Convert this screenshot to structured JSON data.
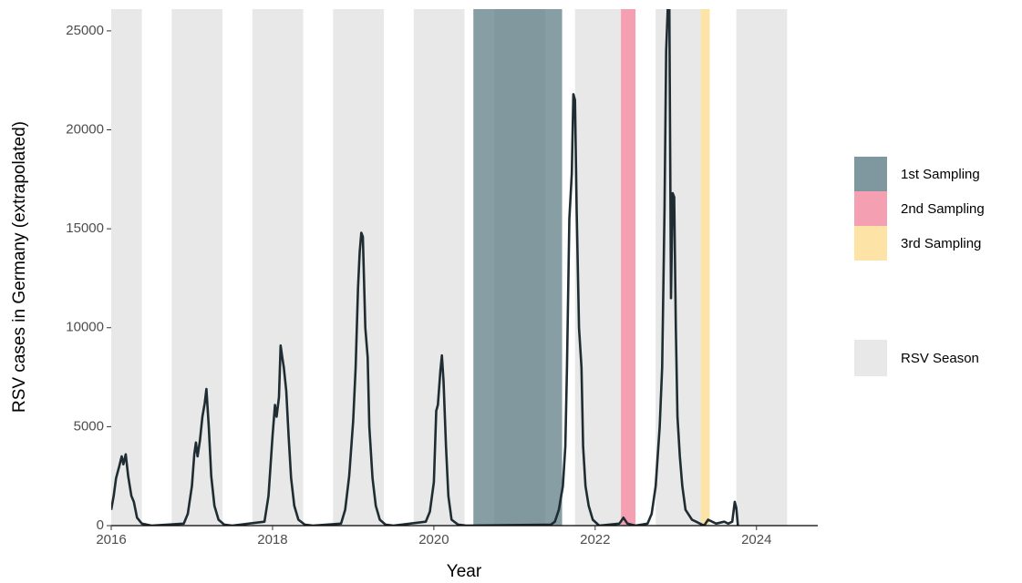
{
  "chart_data": {
    "type": "line",
    "x_label": "Year",
    "y_label": "RSV cases in Germany (extrapolated)",
    "xlim": [
      2016,
      2024.76
    ],
    "ylim": [
      0,
      26100
    ],
    "xticks": [
      2016,
      2018,
      2020,
      2022,
      2024
    ],
    "yticks": [
      0,
      5000,
      10000,
      15000,
      20000,
      25000
    ],
    "color": "#1f2d33",
    "x": [
      2016.0,
      2016.03,
      2016.06,
      2016.1,
      2016.13,
      2016.15,
      2016.18,
      2016.21,
      2016.25,
      2016.28,
      2016.32,
      2016.38,
      2016.5,
      2016.9,
      2016.95,
      2017.0,
      2017.03,
      2017.05,
      2017.07,
      2017.1,
      2017.13,
      2017.16,
      2017.18,
      2017.21,
      2017.24,
      2017.28,
      2017.33,
      2017.4,
      2017.5,
      2017.9,
      2017.95,
      2018.0,
      2018.03,
      2018.05,
      2018.08,
      2018.1,
      2018.12,
      2018.14,
      2018.17,
      2018.2,
      2018.23,
      2018.27,
      2018.32,
      2018.4,
      2018.5,
      2018.85,
      2018.9,
      2018.95,
      2019.0,
      2019.03,
      2019.06,
      2019.08,
      2019.1,
      2019.12,
      2019.15,
      2019.18,
      2019.2,
      2019.24,
      2019.28,
      2019.33,
      2019.4,
      2019.5,
      2019.9,
      2019.95,
      2020.0,
      2020.03,
      2020.05,
      2020.08,
      2020.1,
      2020.12,
      2020.15,
      2020.18,
      2020.22,
      2020.3,
      2020.4,
      2021.45,
      2021.5,
      2021.55,
      2021.6,
      2021.63,
      2021.65,
      2021.68,
      2021.71,
      2021.73,
      2021.75,
      2021.77,
      2021.8,
      2021.83,
      2021.85,
      2021.88,
      2021.92,
      2021.97,
      2022.05,
      2022.3,
      2022.35,
      2022.4,
      2022.5,
      2022.65,
      2022.7,
      2022.75,
      2022.8,
      2022.83,
      2022.86,
      2022.88,
      2022.9,
      2022.92,
      2022.94,
      2022.96,
      2022.98,
      2023.0,
      2023.02,
      2023.05,
      2023.08,
      2023.12,
      2023.2,
      2023.3,
      2023.35,
      2023.4,
      2023.5,
      2023.6,
      2023.65,
      2023.7,
      2023.73,
      2023.75,
      2023.77
    ],
    "values": [
      800,
      1500,
      2400,
      3000,
      3500,
      3100,
      3600,
      2500,
      1500,
      1200,
      400,
      100,
      0,
      100,
      600,
      2000,
      3600,
      4200,
      3500,
      4300,
      5500,
      6200,
      6900,
      5000,
      2500,
      1000,
      300,
      50,
      0,
      200,
      1500,
      4500,
      6100,
      5500,
      6500,
      9100,
      8500,
      8000,
      6800,
      4500,
      2400,
      1000,
      300,
      50,
      0,
      100,
      800,
      2500,
      5300,
      8000,
      12000,
      13800,
      14800,
      14600,
      10000,
      8500,
      5000,
      2400,
      1000,
      300,
      50,
      0,
      200,
      700,
      2200,
      5800,
      6100,
      7800,
      8600,
      7300,
      4000,
      1500,
      300,
      50,
      0,
      50,
      200,
      800,
      2000,
      4000,
      8000,
      15500,
      17800,
      21800,
      21500,
      16000,
      10000,
      8000,
      4000,
      2000,
      1000,
      300,
      0,
      100,
      400,
      100,
      0,
      100,
      600,
      2000,
      5000,
      8000,
      16000,
      24000,
      26100,
      26100,
      11500,
      16800,
      16600,
      10000,
      5500,
      3500,
      2000,
      800,
      300,
      100,
      0,
      300,
      100,
      200,
      100,
      200,
      1200,
      900,
      0
    ],
    "season": {
      "name": "RSV Season",
      "color": "#e8e8e8",
      "starts": [
        2015.75,
        2016.75,
        2017.75,
        2018.75,
        2019.75,
        2020.75,
        2021.75,
        2022.75,
        2023.75
      ],
      "ends": [
        2016.38,
        2017.38,
        2018.38,
        2019.38,
        2020.38,
        2021.38,
        2022.38,
        2023.38,
        2024.38
      ]
    },
    "regions": [
      {
        "name": "1st Sampling",
        "color": "#5f7d86",
        "start": 2020.49,
        "end": 2021.59
      },
      {
        "name": "2nd Sampling",
        "color": "#f59fb3",
        "start": 2022.32,
        "end": 2022.5
      },
      {
        "name": "3rd Sampling",
        "color": "#fde3a6",
        "start": 2023.31,
        "end": 2023.42
      }
    ]
  }
}
